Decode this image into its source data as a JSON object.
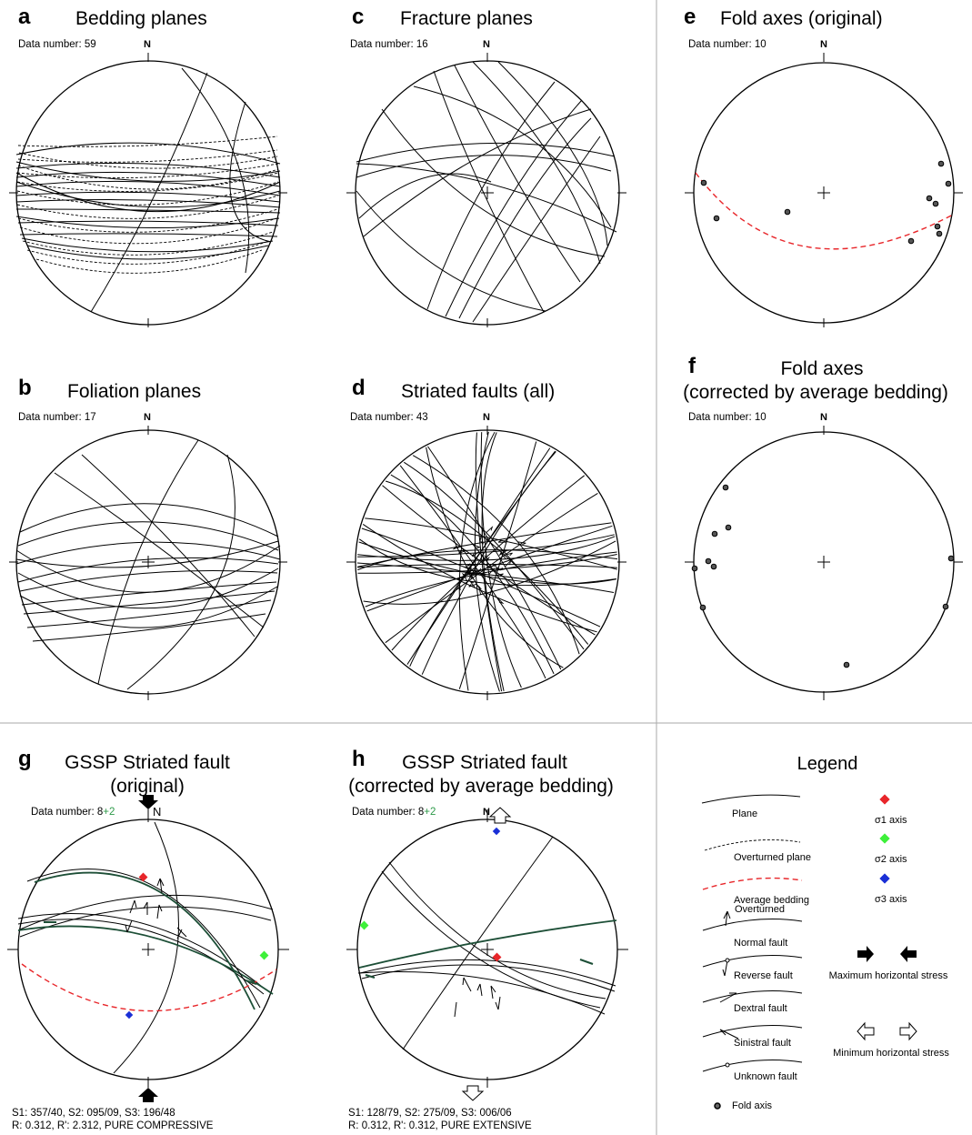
{
  "panels": {
    "a": {
      "letter": "a",
      "title": "Bedding planes",
      "data_number": "Data number: 59",
      "north": "N"
    },
    "b": {
      "letter": "b",
      "title": "Foliation planes",
      "data_number": "Data number: 17",
      "north": "N"
    },
    "c": {
      "letter": "c",
      "title": "Fracture planes",
      "data_number": "Data number: 16",
      "north": "N"
    },
    "d": {
      "letter": "d",
      "title": "Striated faults (all)",
      "data_number": "Data number: 43",
      "north": "N"
    },
    "e": {
      "letter": "e",
      "title": "Fold axes (original)",
      "data_number": "Data number: 10",
      "north": "N"
    },
    "f": {
      "letter": "f",
      "title_line1": "Fold axes",
      "title_line2": "(corrected by average bedding)",
      "data_number": "Data number: 10",
      "north": "N"
    },
    "g": {
      "letter": "g",
      "title_line1": "GSSP Striated fault",
      "title_line2": "(original)",
      "data_number_base": "Data number: 8",
      "data_number_extra": "+2",
      "north": "N",
      "result_line1": "S1: 357/40, S2: 095/09, S3: 196/48",
      "result_line2": "R: 0.312, R': 2.312, PURE COMPRESSIVE"
    },
    "h": {
      "letter": "h",
      "title_line1": "GSSP Striated fault",
      "title_line2": "(corrected by average bedding)",
      "data_number_base": "Data number: 8",
      "data_number_extra": "+2",
      "north": "N",
      "result_line1": "S1: 128/79, S2: 275/09, S3: 006/06",
      "result_line2": "R: 0.312, R': 0.312, PURE EXTENSIVE"
    }
  },
  "legend": {
    "title": "Legend",
    "items": {
      "plane": "Plane",
      "overturned_plane": "Overturned plane",
      "average_bedding": "Average bedding",
      "overturned": "Overturned",
      "normal_fault": "Normal fault",
      "reverse_fault": "Reverse fault",
      "dextral_fault": "Dextral fault",
      "sinistral_fault": "Sinistral fault",
      "unknown_fault": "Unknown fault",
      "fold_axis": "Fold axis",
      "sigma1": "σ1 axis",
      "sigma2": "σ2 axis",
      "sigma3": "σ3 axis",
      "max_stress": "Maximum horizontal stress",
      "min_stress": "Minimum horizontal stress"
    }
  },
  "colors": {
    "sigma1": "#e8262a",
    "sigma2": "#3ef03a",
    "sigma3": "#1a2fd6",
    "average_bedding": "#e8262a",
    "fault_green": "#1d4f37",
    "extra_count": "#2e9a4a",
    "divider": "#aaaaaa"
  }
}
